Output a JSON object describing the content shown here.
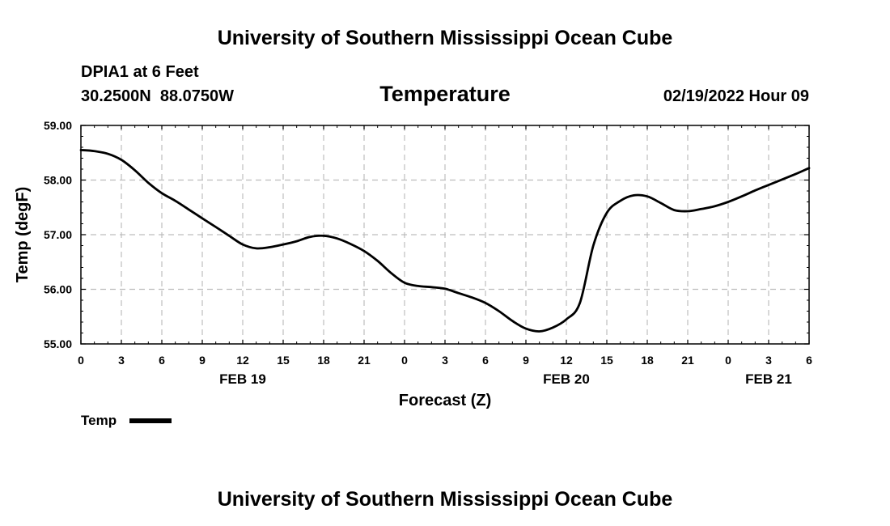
{
  "chart_data": {
    "type": "line",
    "header": "University of Southern Mississippi Ocean Cube",
    "footer": "University of Southern Mississippi Ocean Cube",
    "station": "DPIA1 at 6 Feet",
    "coordinates": "30.2500N  88.0750W",
    "title": "Temperature",
    "timestamp": "02/19/2022 Hour 09",
    "xlabel": "Forecast (Z)",
    "ylabel": "Temp (degF)",
    "xlim": [
      0,
      54
    ],
    "ylim": [
      55,
      59
    ],
    "x_tick_values": [
      0,
      3,
      6,
      9,
      12,
      15,
      18,
      21,
      24,
      27,
      30,
      33,
      36,
      39,
      42,
      45,
      48,
      51,
      54
    ],
    "x_tick_labels": [
      "0",
      "3",
      "6",
      "9",
      "12",
      "15",
      "18",
      "21",
      "0",
      "3",
      "6",
      "9",
      "12",
      "15",
      "18",
      "21",
      "0",
      "3",
      "6"
    ],
    "y_tick_values": [
      55,
      56,
      57,
      58,
      59
    ],
    "y_tick_labels": [
      "55.00",
      "56.00",
      "57.00",
      "58.00",
      "59.00"
    ],
    "date_labels": [
      {
        "hour": 12,
        "label": "FEB 19"
      },
      {
        "hour": 36,
        "label": "FEB 20"
      },
      {
        "hour": 51,
        "label": "FEB 21"
      }
    ],
    "grid": true,
    "legend": {
      "placement": "bottom-left",
      "label": "Temp"
    },
    "series": [
      {
        "name": "Temp",
        "color": "#000000",
        "x": [
          0,
          1,
          2,
          3,
          4,
          5,
          6,
          7,
          8,
          9,
          10,
          11,
          12,
          13,
          14,
          15,
          16,
          17,
          18,
          19,
          20,
          21,
          22,
          23,
          24,
          25,
          26,
          27,
          28,
          29,
          30,
          31,
          32,
          33,
          34,
          35,
          36,
          37,
          38,
          39,
          40,
          41,
          42,
          43,
          44,
          45,
          46,
          47,
          48,
          49,
          50,
          51,
          52,
          53,
          54
        ],
        "values": [
          58.55,
          58.53,
          58.48,
          58.37,
          58.18,
          57.95,
          57.76,
          57.62,
          57.46,
          57.3,
          57.14,
          56.98,
          56.82,
          56.75,
          56.77,
          56.82,
          56.88,
          56.96,
          56.98,
          56.93,
          56.83,
          56.7,
          56.52,
          56.3,
          56.12,
          56.06,
          56.04,
          56.01,
          55.93,
          55.85,
          55.75,
          55.6,
          55.42,
          55.28,
          55.23,
          55.3,
          55.45,
          55.75,
          56.8,
          57.4,
          57.62,
          57.72,
          57.7,
          57.58,
          57.45,
          57.43,
          57.47,
          57.52,
          57.6,
          57.7,
          57.81,
          57.91,
          58.01,
          58.11,
          58.22
        ]
      }
    ]
  }
}
